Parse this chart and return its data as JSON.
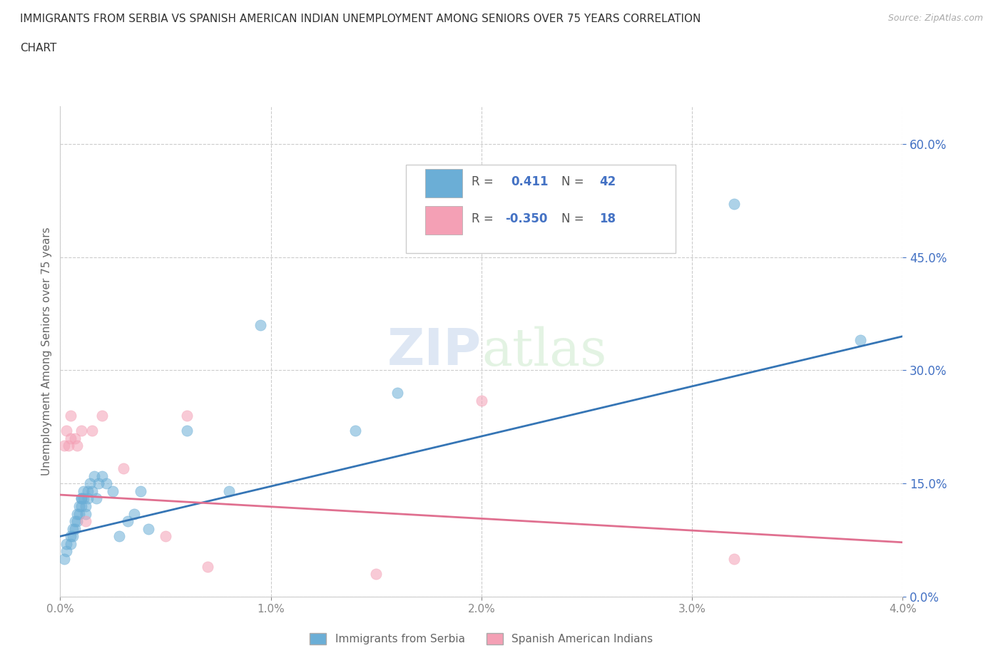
{
  "title_line1": "IMMIGRANTS FROM SERBIA VS SPANISH AMERICAN INDIAN UNEMPLOYMENT AMONG SENIORS OVER 75 YEARS CORRELATION",
  "title_line2": "CHART",
  "source": "Source: ZipAtlas.com",
  "ylabel": "Unemployment Among Seniors over 75 years",
  "xlim": [
    0.0,
    0.04
  ],
  "ylim": [
    0.0,
    0.65
  ],
  "xticks": [
    0.0,
    0.01,
    0.02,
    0.03,
    0.04
  ],
  "yticks": [
    0.0,
    0.15,
    0.3,
    0.45,
    0.6
  ],
  "grid_color": "#cccccc",
  "background_color": "#ffffff",
  "watermark_text": "ZIPatlas",
  "blue_color": "#6baed6",
  "pink_color": "#f4a0b5",
  "blue_line_color": "#3575b5",
  "pink_line_color": "#e07090",
  "series": [
    {
      "name": "Immigrants from Serbia",
      "color": "#6baed6",
      "line_color": "#3575b5",
      "R": "0.411",
      "N": "42",
      "x": [
        0.0002,
        0.0003,
        0.0003,
        0.0005,
        0.0005,
        0.0006,
        0.0006,
        0.0007,
        0.0007,
        0.0008,
        0.0008,
        0.0009,
        0.0009,
        0.001,
        0.001,
        0.001,
        0.0011,
        0.0011,
        0.0012,
        0.0012,
        0.0013,
        0.0013,
        0.0014,
        0.0015,
        0.0016,
        0.0017,
        0.0018,
        0.002,
        0.0022,
        0.0025,
        0.0028,
        0.0032,
        0.0035,
        0.0038,
        0.0042,
        0.006,
        0.008,
        0.0095,
        0.014,
        0.016,
        0.032,
        0.038
      ],
      "y": [
        0.05,
        0.06,
        0.07,
        0.07,
        0.08,
        0.08,
        0.09,
        0.09,
        0.1,
        0.1,
        0.11,
        0.11,
        0.12,
        0.12,
        0.13,
        0.13,
        0.13,
        0.14,
        0.11,
        0.12,
        0.13,
        0.14,
        0.15,
        0.14,
        0.16,
        0.13,
        0.15,
        0.16,
        0.15,
        0.14,
        0.08,
        0.1,
        0.11,
        0.14,
        0.09,
        0.22,
        0.14,
        0.36,
        0.22,
        0.27,
        0.52,
        0.34
      ],
      "trend_x": [
        0.0,
        0.04
      ],
      "trend_y": [
        0.08,
        0.345
      ]
    },
    {
      "name": "Spanish American Indians",
      "color": "#f4a0b5",
      "line_color": "#e07090",
      "R": "-0.350",
      "N": "18",
      "x": [
        0.0002,
        0.0003,
        0.0004,
        0.0005,
        0.0005,
        0.0007,
        0.0008,
        0.001,
        0.0012,
        0.0015,
        0.002,
        0.003,
        0.005,
        0.006,
        0.007,
        0.015,
        0.02,
        0.032
      ],
      "y": [
        0.2,
        0.22,
        0.2,
        0.21,
        0.24,
        0.21,
        0.2,
        0.22,
        0.1,
        0.22,
        0.24,
        0.17,
        0.08,
        0.24,
        0.04,
        0.03,
        0.26,
        0.05
      ],
      "trend_x": [
        0.0,
        0.04
      ],
      "trend_y": [
        0.135,
        0.072
      ]
    }
  ]
}
